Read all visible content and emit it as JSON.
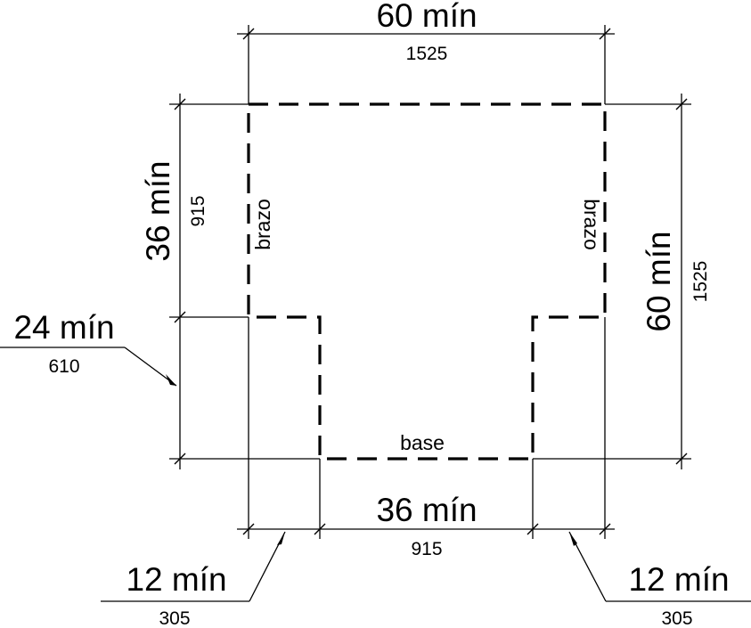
{
  "dimensions": {
    "top_width": {
      "in": "60 mín",
      "mm": "1525"
    },
    "left_height": {
      "in": "36 mín",
      "mm": "915"
    },
    "right_height": {
      "in": "60 mín",
      "mm": "1525"
    },
    "left_offset": {
      "in": "24 mín",
      "mm": "610"
    },
    "base_width": {
      "in": "36 mín",
      "mm": "915"
    },
    "bottom_left": {
      "in": "12 mín",
      "mm": "305"
    },
    "bottom_right": {
      "in": "12 mín",
      "mm": "305"
    }
  },
  "labels": {
    "left_arm": "brazo",
    "right_arm": "brazo",
    "base": "base"
  }
}
